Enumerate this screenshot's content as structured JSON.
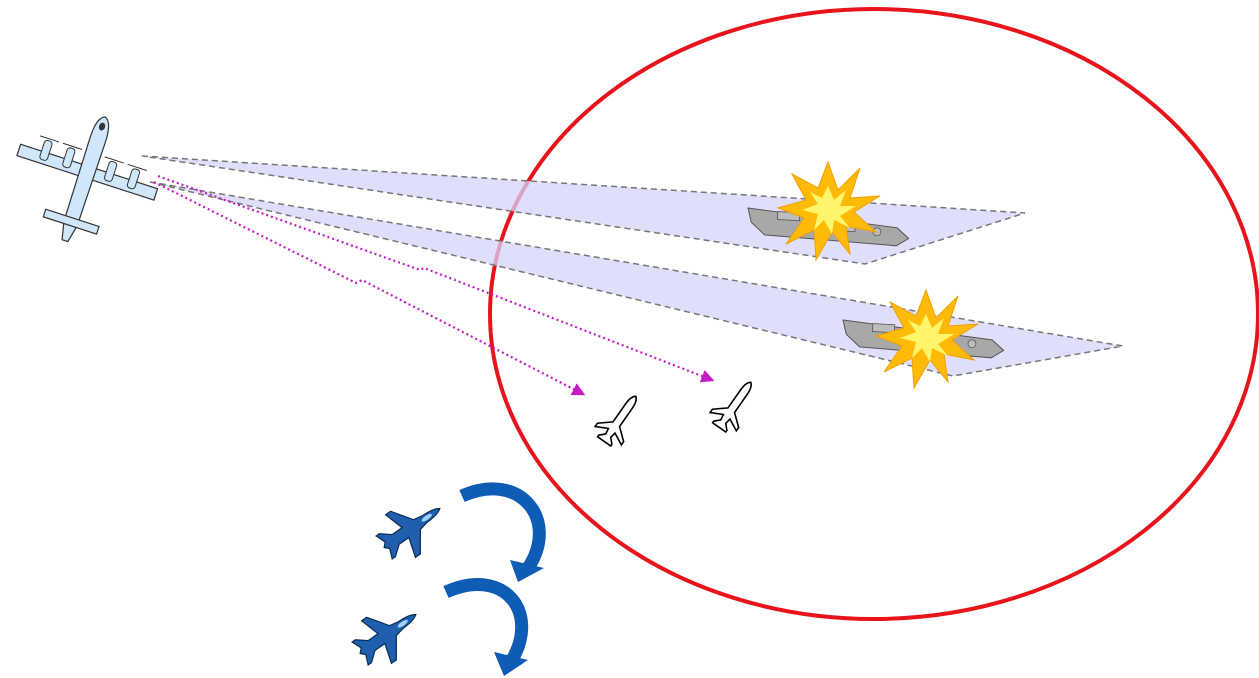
{
  "colors": {
    "engagement_zone": "#e8141c",
    "sensor_beam_fill": "#d4d4fb",
    "sensor_beam_stroke": "#777777",
    "datalink": "#c61ac6",
    "patrol_aircraft_fill": "#cfe6fb",
    "fighter_fill": "#1f5fae",
    "maneuver_arrow": "#0f5cb6",
    "explosion_outer": "#ffba08",
    "explosion_inner": "#fff56a",
    "ship_fill": "#a8a8a8",
    "missile_fill": "#ffffff"
  },
  "icons": {
    "patrol_aircraft": "maritime-patrol-aircraft-icon",
    "missile": "anti-ship-missile-icon",
    "fighter": "fighter-jet-icon",
    "ship": "warship-icon",
    "explosion": "explosion-icon",
    "maneuver": "curved-arrow-icon"
  },
  "counts": {
    "sensor_beams": 2,
    "target_ships": 2,
    "missiles": 2,
    "fighters": 2
  }
}
